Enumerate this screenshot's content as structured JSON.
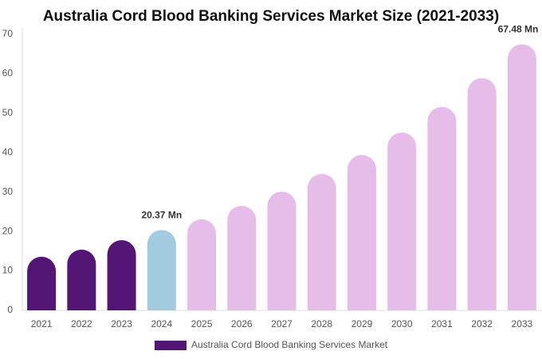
{
  "chart_data": {
    "type": "bar",
    "title": "Australia Cord Blood Banking Services Market Size (2021-2033)",
    "categories": [
      "2021",
      "2022",
      "2023",
      "2024",
      "2025",
      "2026",
      "2027",
      "2028",
      "2029",
      "2030",
      "2031",
      "2032",
      "2033"
    ],
    "series": [
      {
        "name": "Australia Cord Blood Banking Services Market",
        "color": "#541675",
        "values": [
          13.6,
          15.4,
          17.8,
          20.37,
          23.1,
          26.5,
          30.1,
          34.6,
          39.4,
          45.1,
          51.6,
          58.9,
          67.48
        ],
        "colors": [
          "#541675",
          "#541675",
          "#541675",
          "#a3cbe0",
          "#e6bde9",
          "#e6bde9",
          "#e6bde9",
          "#e6bde9",
          "#e6bde9",
          "#e6bde9",
          "#e6bde9",
          "#e6bde9",
          "#e6bde9"
        ],
        "value_labels": [
          null,
          null,
          null,
          "20.37 Mn",
          null,
          null,
          null,
          null,
          null,
          null,
          null,
          null,
          "67.48 Mn"
        ]
      }
    ],
    "ylim": [
      0,
      70
    ],
    "yticks": [
      0,
      10,
      20,
      30,
      40,
      50,
      60,
      70
    ],
    "grid": false
  }
}
